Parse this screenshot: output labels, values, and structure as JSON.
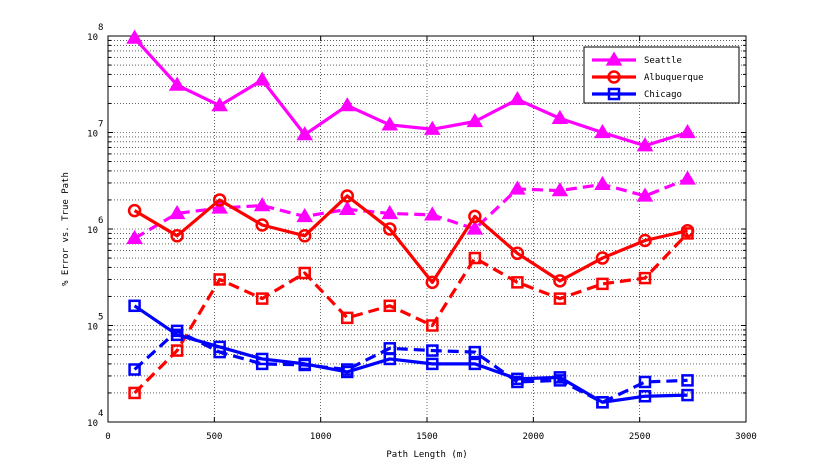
{
  "chart_data": {
    "type": "line",
    "title": "",
    "xlabel": "Path Length (m)",
    "ylabel": "% Error vs. True Path",
    "xlim": [
      0,
      3000
    ],
    "ylim": [
      10000,
      100000000
    ],
    "yscale": "log",
    "grid": true,
    "x_ticks": [
      "0",
      "500",
      "1000",
      "1500",
      "2000",
      "2500",
      "3000"
    ],
    "y_ticks": [
      {
        "base": "10",
        "exp": "4"
      },
      {
        "base": "10",
        "exp": "5"
      },
      {
        "base": "10",
        "exp": "6"
      },
      {
        "base": "10",
        "exp": "7"
      },
      {
        "base": "10",
        "exp": "8"
      }
    ],
    "legend_position": "top-right",
    "legend": [
      "Seattle",
      "Albuquerque",
      "Chicago"
    ],
    "x": [
      125,
      325,
      525,
      725,
      925,
      1125,
      1325,
      1525,
      1725,
      1925,
      2125,
      2325,
      2525,
      2725
    ],
    "series": [
      {
        "name": "Seattle",
        "style": "solid",
        "marker": "triangle",
        "color": "#ff00ff",
        "values": [
          95000000,
          31000000,
          19000000,
          35000000,
          9500000,
          19000000,
          12000000,
          10800000,
          13000000,
          22000000,
          14000000,
          10000000,
          7300000,
          10000000
        ]
      },
      {
        "name": "Seattle (dashed)",
        "style": "dashed",
        "marker": "triangle",
        "color": "#ff00ff",
        "values": [
          800000,
          1450000,
          1650000,
          1750000,
          1350000,
          1600000,
          1450000,
          1400000,
          1000000,
          2600000,
          2500000,
          2900000,
          2200000,
          3300000
        ]
      },
      {
        "name": "Albuquerque",
        "style": "solid",
        "marker": "circle",
        "color": "#ff0000",
        "values": [
          1550000,
          850000,
          2000000,
          1100000,
          850000,
          2200000,
          1000000,
          280000,
          1350000,
          560000,
          290000,
          500000,
          760000,
          960000
        ]
      },
      {
        "name": "Albuquerque (dashed)",
        "style": "dashed",
        "marker": "square",
        "color": "#ff0000",
        "values": [
          20000,
          55000,
          300000,
          190000,
          350000,
          120000,
          160000,
          100000,
          500000,
          280000,
          190000,
          270000,
          310000,
          900000
        ]
      },
      {
        "name": "Chicago",
        "style": "solid",
        "marker": "square",
        "color": "#0000ff",
        "values": [
          160000,
          80000,
          60000,
          45000,
          40000,
          33000,
          45000,
          40000,
          40000,
          28000,
          29000,
          16000,
          18500,
          19000
        ]
      },
      {
        "name": "Chicago (dashed)",
        "style": "dashed",
        "marker": "square",
        "color": "#0000ff",
        "values": [
          35000,
          88000,
          53000,
          40000,
          39000,
          35000,
          58000,
          55000,
          53000,
          26000,
          27000,
          16000,
          26000,
          27000
        ]
      }
    ]
  }
}
